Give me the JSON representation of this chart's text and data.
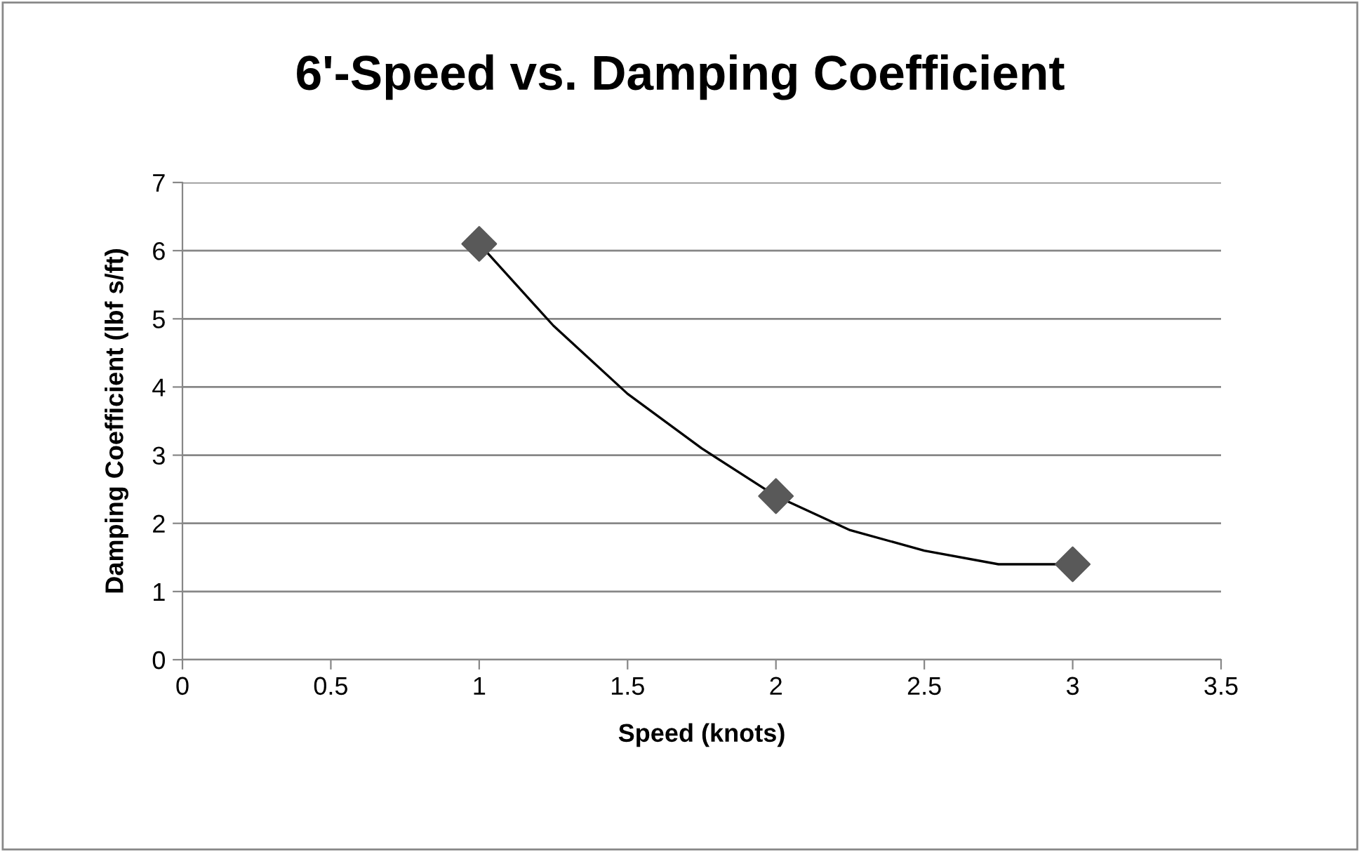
{
  "chart_data": {
    "type": "scatter",
    "title": "6'-Speed vs. Damping Coefficient",
    "xlabel": "Speed (knots)",
    "ylabel": "Damping Coefficient (lbf s/ft)",
    "series": [
      {
        "color": "#595959",
        "marker": "diamond",
        "x": [
          1,
          2,
          3
        ],
        "values": [
          6.1,
          2.4,
          1.4
        ]
      },
      {
        "type": "line",
        "color": "#000000",
        "marker": "none",
        "line_style": "solid",
        "x": [
          1,
          1.25,
          1.5,
          1.75,
          2,
          2.25,
          2.5,
          2.75,
          3
        ],
        "values": [
          6.1,
          4.9,
          3.9,
          3.1,
          2.4,
          1.9,
          1.6,
          1.4,
          1.4
        ]
      }
    ],
    "xlim": [
      0,
      3.5
    ],
    "xticks": [
      0,
      0.5,
      1,
      1.5,
      2,
      2.5,
      3,
      3.5
    ],
    "ylim": [
      0,
      7
    ],
    "yticks": [
      0,
      1,
      2,
      3,
      4,
      5,
      6,
      7
    ],
    "grid": "y",
    "legend": false
  }
}
